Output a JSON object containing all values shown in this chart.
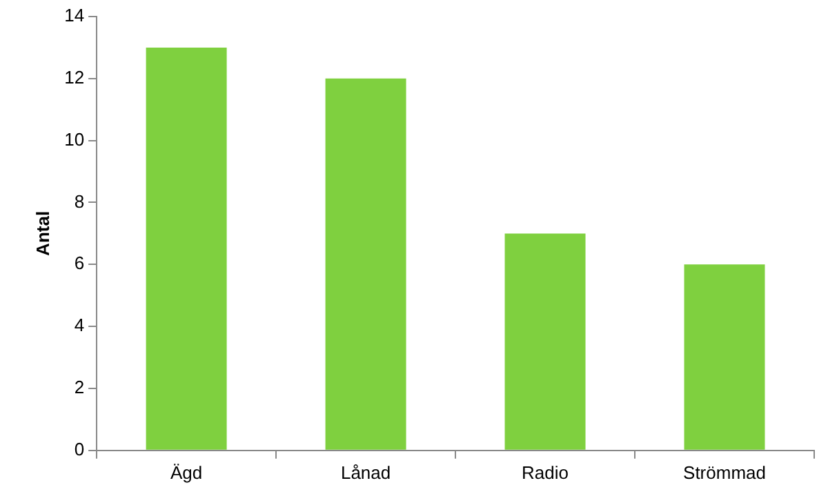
{
  "chart_data": {
    "type": "bar",
    "ylabel": "Antal",
    "categories": [
      "Ägd",
      "Lånad",
      "Radio",
      "Strömmad"
    ],
    "values": [
      13,
      12,
      7,
      6
    ],
    "color": "#7fd03f",
    "ylim": [
      0,
      14
    ],
    "yticks": [
      0,
      2,
      4,
      6,
      8,
      10,
      12,
      14
    ],
    "grid": false
  }
}
